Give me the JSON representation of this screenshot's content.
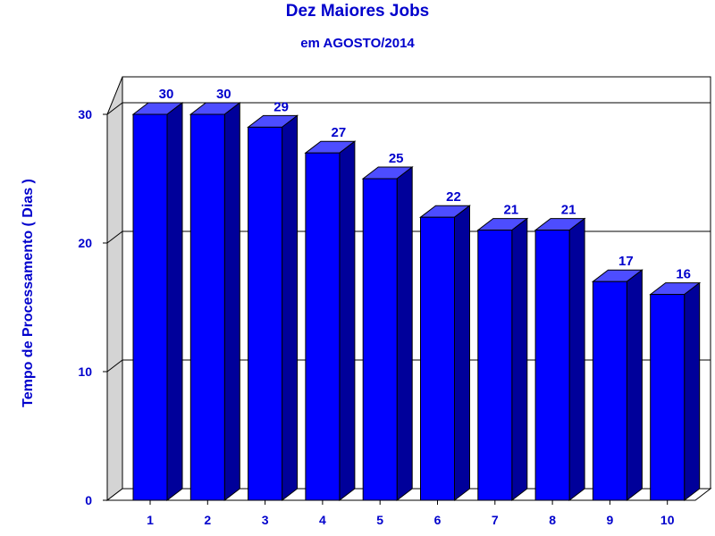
{
  "chart_data": {
    "type": "bar",
    "title": "Dez Maiores Jobs",
    "subtitle": "em AGOSTO/2014",
    "ylabel": "Tempo de Processamento ( Dias )",
    "categories": [
      "1",
      "2",
      "3",
      "4",
      "5",
      "6",
      "7",
      "8",
      "9",
      "10"
    ],
    "values": [
      30,
      30,
      29,
      27,
      25,
      22,
      21,
      21,
      17,
      16
    ],
    "ylim": [
      0,
      30
    ],
    "yticks": [
      0,
      10,
      20,
      30
    ],
    "grid": true,
    "legend": "none",
    "colors": {
      "bar_front": "#0000ff",
      "bar_top": "#4d4dff",
      "bar_side": "#00009a",
      "text": "#0000cc",
      "wall": "#d4d4d4"
    }
  }
}
